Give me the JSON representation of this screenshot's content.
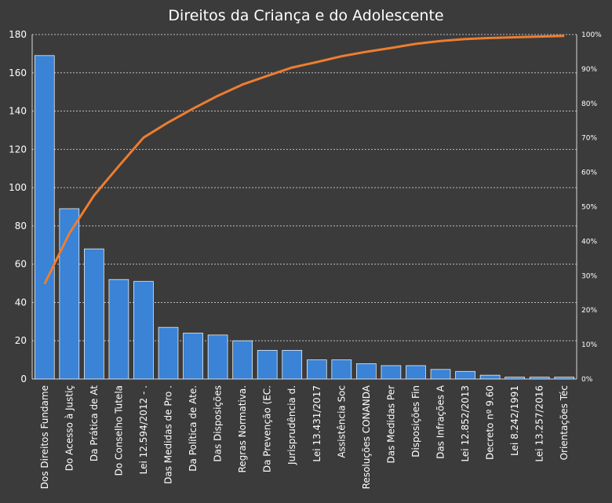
{
  "chart_data": {
    "type": "bar",
    "title": "Direitos da Criança e do Adolescente",
    "categories": [
      "Dos Direitos Fundame",
      "Do Acesso à Justiç",
      "Da Prática de At",
      "Do Conselho Tutela",
      "Lei 12.594/2012 - .",
      "Das Medidas de Pro .",
      "Da Política de Ate.",
      "Das Disposições",
      "Regras Normativa.",
      "Da Prevenção (EC.",
      "Jurisprudência d.",
      "Lei 13.431/2017",
      "Assistência Soc",
      "Resoluções CONANDA",
      "Das Medidas Per",
      "Disposições Fin",
      "Das Infrações A",
      "Lei 12.852/2013",
      "Decreto nº 9.60",
      "Lei 8.242/1991",
      "Lei 13.257/2016",
      "Orientações Téc"
    ],
    "series": [
      {
        "type": "bar",
        "axis": "left",
        "values": [
          169,
          89,
          68,
          52,
          51,
          27,
          24,
          23,
          20,
          15,
          15,
          10,
          10,
          8,
          7,
          7,
          5,
          4,
          2,
          1,
          1,
          1
        ]
      },
      {
        "type": "line",
        "axis": "right",
        "values": [
          27.6,
          42.2,
          53.3,
          61.8,
          70.1,
          74.5,
          78.5,
          82.2,
          85.5,
          88.0,
          90.4,
          92.0,
          93.7,
          95.0,
          96.1,
          97.3,
          98.1,
          98.7,
          99.0,
          99.2,
          99.4,
          99.6
        ]
      }
    ],
    "y_left": {
      "min": 0,
      "max": 180,
      "ticks": [
        "0",
        "20",
        "40",
        "60",
        "80",
        "100",
        "120",
        "140",
        "160",
        "180"
      ]
    },
    "y_right": {
      "min": 0,
      "max": 100,
      "ticks": [
        "0%",
        "10%",
        "20%",
        "30%",
        "40%",
        "50%",
        "60%",
        "70%",
        "80%",
        "90%",
        "100%"
      ]
    },
    "grid": true,
    "legend": "none",
    "colors": {
      "background": "#3b3b3b",
      "bars": "#3a83d6",
      "line": "#ed7d31",
      "text": "#ffffff",
      "grid": "#bdbdbd"
    }
  }
}
